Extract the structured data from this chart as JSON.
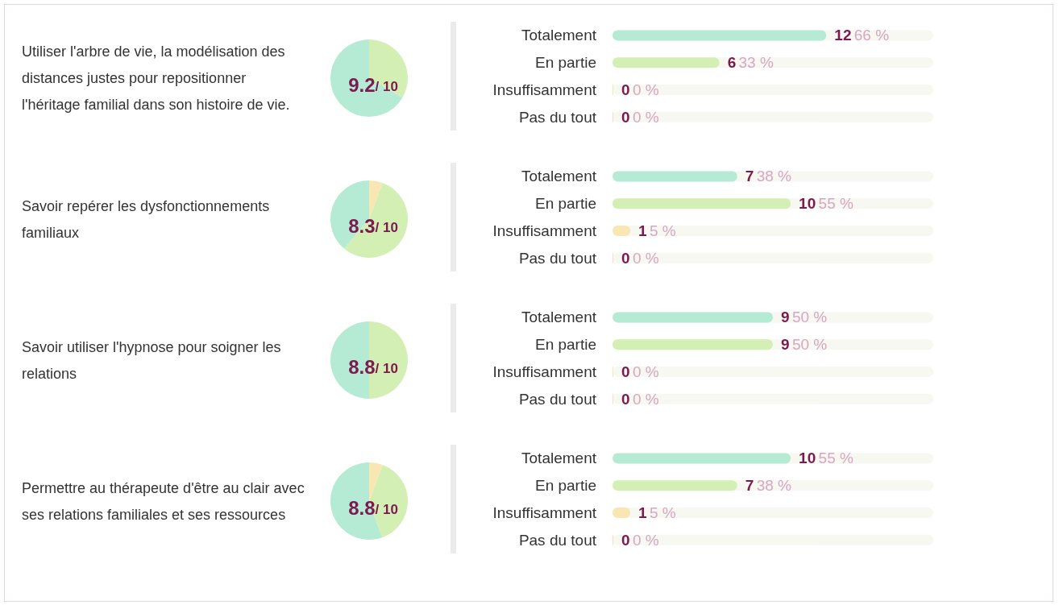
{
  "chart_data": [
    {
      "type": "pie",
      "title": "9.2",
      "subtitle": "/ 10",
      "annotations": [
        "Utiliser l'arbre de vie, la modélisation des distances justes pour repositionner l'héritage familial dans son histoire de vie."
      ],
      "categories": [
        null,
        null
      ],
      "values": [
        66.7,
        33.3
      ],
      "colors": [
        "#b5ebd4",
        "#d4efb4"
      ]
    },
    {
      "type": "bar",
      "orientation": "horizontal",
      "tick_labels": "y",
      "categories": [
        "Totalement",
        "En partie",
        "Insuffisamment",
        "Pas du tout"
      ],
      "values": [
        12,
        6,
        0,
        0
      ],
      "colors": [
        "#b5ebd4",
        "#d4efb4",
        "#f8e6b3",
        "#f9dccb"
      ],
      "value_labels": [
        "12 66 %",
        "6 33 %",
        "0 0 %",
        "0 0 %"
      ],
      "xlim": [
        0,
        18
      ]
    },
    {
      "type": "pie",
      "title": "8.3",
      "subtitle": "/ 10",
      "annotations": [
        "Savoir repérer les dysfonctionnements familiaux"
      ],
      "categories": [
        null,
        null,
        null
      ],
      "values": [
        38.9,
        55.5,
        5.6
      ],
      "colors": [
        "#b5ebd4",
        "#d4efb4",
        "#f8e6b3"
      ]
    },
    {
      "type": "bar",
      "orientation": "horizontal",
      "tick_labels": "y",
      "categories": [
        "Totalement",
        "En partie",
        "Insuffisamment",
        "Pas du tout"
      ],
      "values": [
        7,
        10,
        1,
        0
      ],
      "colors": [
        "#b5ebd4",
        "#d4efb4",
        "#f8e6b3",
        "#f9dccb"
      ],
      "value_labels": [
        "7 38 %",
        "10 55 %",
        "1 5 %",
        "0 0 %"
      ],
      "xlim": [
        0,
        18
      ]
    },
    {
      "type": "pie",
      "title": "8.8",
      "subtitle": "/ 10",
      "annotations": [
        "Savoir utiliser l'hypnose pour soigner les relations"
      ],
      "categories": [
        null,
        null
      ],
      "values": [
        50,
        50
      ],
      "colors": [
        "#b5ebd4",
        "#d4efb4"
      ]
    },
    {
      "type": "bar",
      "orientation": "horizontal",
      "tick_labels": "y",
      "categories": [
        "Totalement",
        "En partie",
        "Insuffisamment",
        "Pas du tout"
      ],
      "values": [
        9,
        9,
        0,
        0
      ],
      "colors": [
        "#b5ebd4",
        "#d4efb4",
        "#f8e6b3",
        "#f9dccb"
      ],
      "value_labels": [
        "9 50 %",
        "9 50 %",
        "0 0 %",
        "0 0 %"
      ],
      "xlim": [
        0,
        18
      ]
    },
    {
      "type": "pie",
      "title": "8.8",
      "subtitle": "/ 10",
      "annotations": [
        "Permettre au thérapeute d'être au clair avec ses relations familiales et ses ressources"
      ],
      "categories": [
        null,
        null,
        null
      ],
      "values": [
        55.5,
        38.9,
        5.6
      ],
      "colors": [
        "#b5ebd4",
        "#d4efb4",
        "#f8e6b3"
      ]
    },
    {
      "type": "bar",
      "orientation": "horizontal",
      "tick_labels": "y",
      "categories": [
        "Totalement",
        "En partie",
        "Insuffisamment",
        "Pas du tout"
      ],
      "values": [
        10,
        7,
        1,
        0
      ],
      "colors": [
        "#b5ebd4",
        "#d4efb4",
        "#f8e6b3",
        "#f9dccb"
      ],
      "value_labels": [
        "10 55 %",
        "7 38 %",
        "1 5 %",
        "0 0 %"
      ],
      "xlim": [
        0,
        18
      ]
    }
  ]
}
